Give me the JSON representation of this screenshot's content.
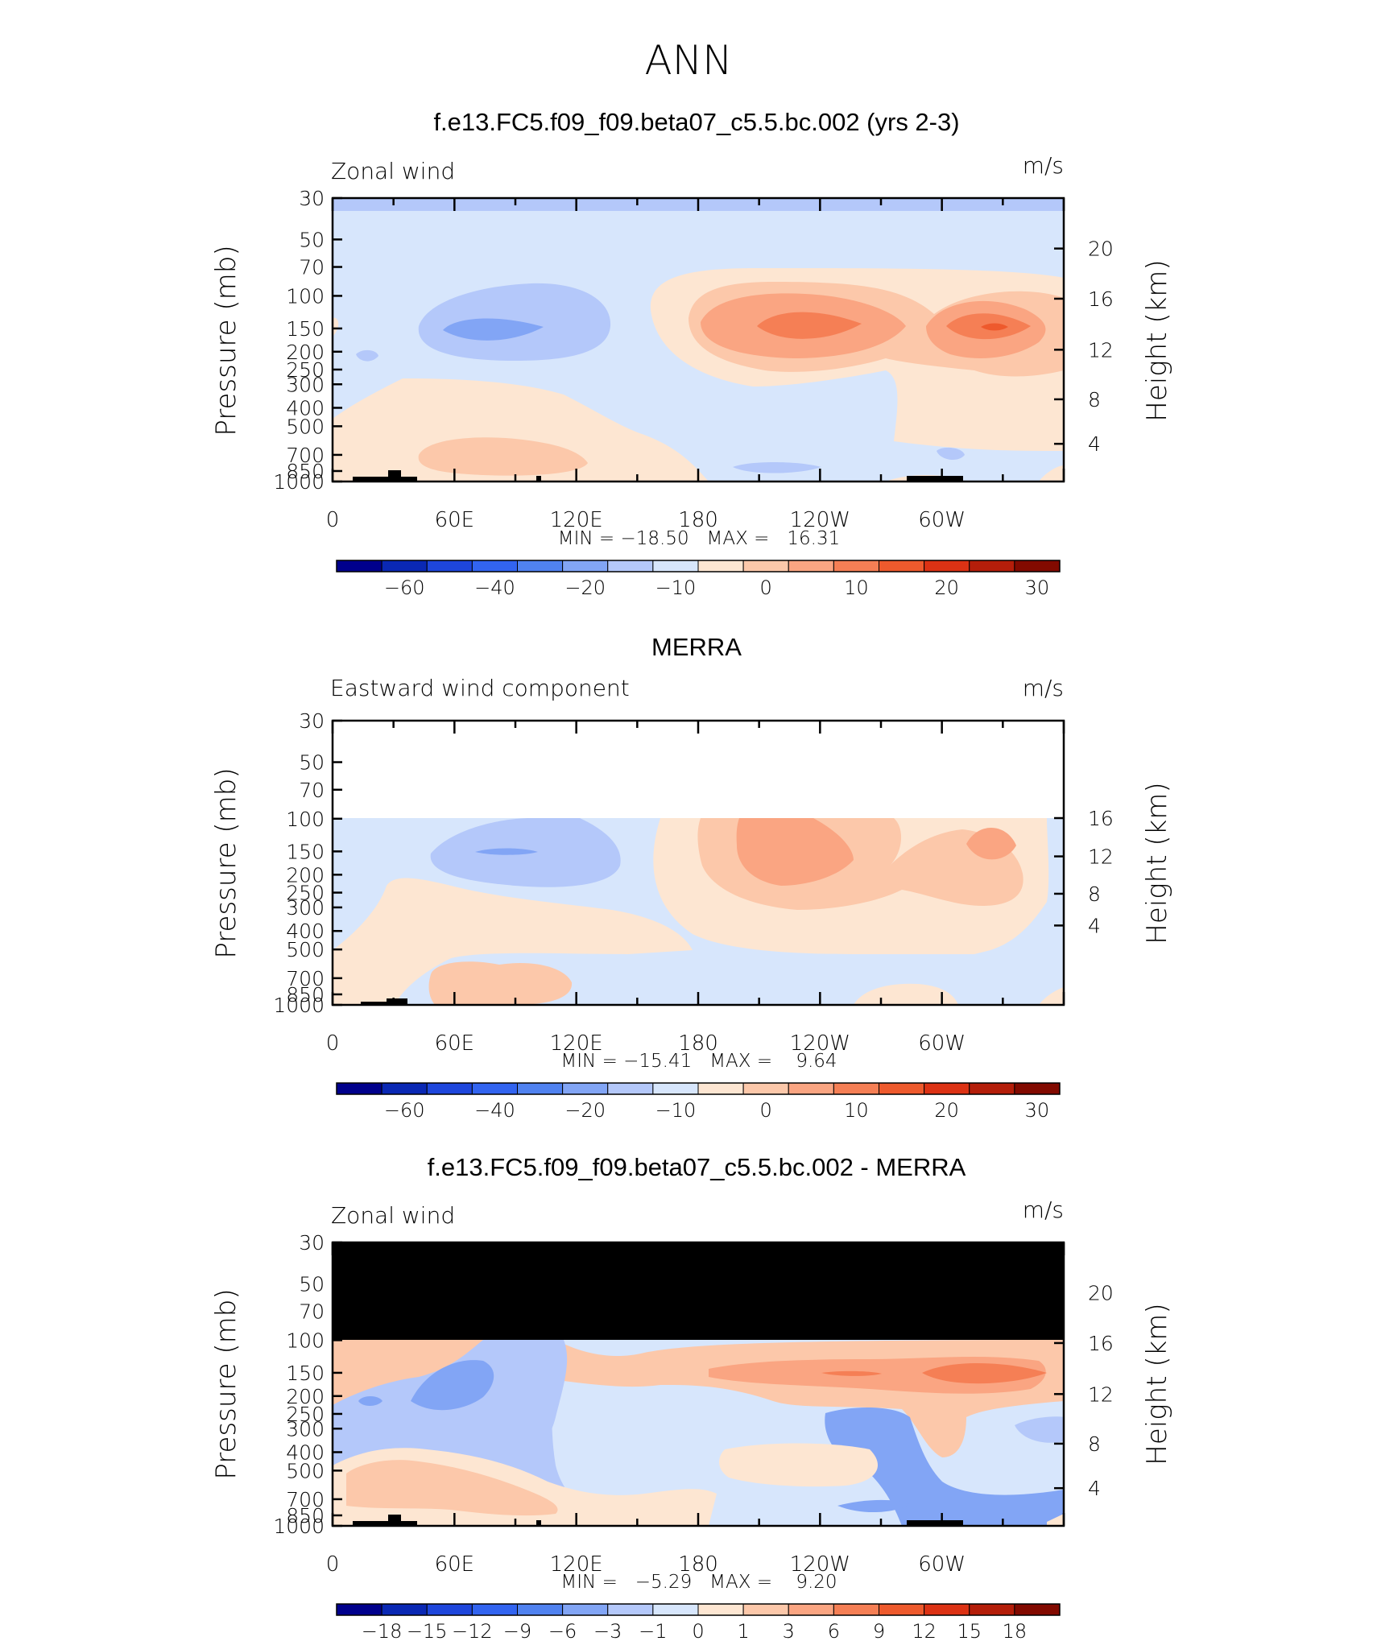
{
  "figure": {
    "title": "ANN"
  },
  "chart_data": [
    {
      "type": "heatmap",
      "title": "f.e13.FC5.f09_f09.beta07_c5.5.bc.002 (yrs 2-3)",
      "variable_label": "Zonal wind",
      "units": "m/s",
      "xlabel": "",
      "ylabel": "Pressure (mb)",
      "y2label": "Height (km)",
      "x_ticks": [
        "0",
        "60E",
        "120E",
        "180",
        "120W",
        "60W"
      ],
      "y_ticks": [
        "30",
        "50",
        "70",
        "100",
        "150",
        "200",
        "250",
        "300",
        "400",
        "500",
        "700",
        "850",
        "1000"
      ],
      "y2_ticks": [
        "20",
        "16",
        "12",
        "8",
        "4"
      ],
      "stats": "MIN = −18.50   MAX =   16.31",
      "colorbar_labels": [
        "−60",
        "−40",
        "−20",
        "−10",
        "0",
        "10",
        "20",
        "30"
      ],
      "min": -18.5,
      "max": 16.31
    },
    {
      "type": "heatmap",
      "title": "MERRA",
      "variable_label": "Eastward wind component",
      "units": "m/s",
      "xlabel": "",
      "ylabel": "Pressure (mb)",
      "y2label": "Height (km)",
      "x_ticks": [
        "0",
        "60E",
        "120E",
        "180",
        "120W",
        "60W"
      ],
      "y_ticks": [
        "30",
        "50",
        "70",
        "100",
        "150",
        "200",
        "250",
        "300",
        "400",
        "500",
        "700",
        "850",
        "1000"
      ],
      "y2_ticks": [
        "16",
        "12",
        "8",
        "4"
      ],
      "stats": "MIN = −15.41   MAX =    9.64",
      "colorbar_labels": [
        "−60",
        "−40",
        "−20",
        "−10",
        "0",
        "10",
        "20",
        "30"
      ],
      "min": -15.41,
      "max": 9.64
    },
    {
      "type": "heatmap",
      "title": "f.e13.FC5.f09_f09.beta07_c5.5.bc.002 - MERRA",
      "variable_label": "Zonal wind",
      "units": "m/s",
      "xlabel": "",
      "ylabel": "Pressure (mb)",
      "y2label": "Height (km)",
      "x_ticks": [
        "0",
        "60E",
        "120E",
        "180",
        "120W",
        "60W"
      ],
      "y_ticks": [
        "30",
        "50",
        "70",
        "100",
        "150",
        "200",
        "250",
        "300",
        "400",
        "500",
        "700",
        "850",
        "1000"
      ],
      "y2_ticks": [
        "20",
        "16",
        "12",
        "8",
        "4"
      ],
      "stats": "MIN =   −5.29   MAX =    9.20",
      "colorbar_labels": [
        "−18",
        "−15",
        "−12",
        "−9",
        "−6",
        "−3",
        "−1",
        "0",
        "1",
        "3",
        "6",
        "9",
        "12",
        "15",
        "18"
      ],
      "min": -5.29,
      "max": 9.2
    }
  ],
  "colors": {
    "palette": [
      "#00008c",
      "#0a28b4",
      "#1e46dc",
      "#3264f0",
      "#5082f0",
      "#82a5f5",
      "#b4c8fa",
      "#d7e6fc",
      "#fde6d2",
      "#fcc8aa",
      "#faa582",
      "#f57f55",
      "#ee5a2d",
      "#dc3214",
      "#b41e0a",
      "#820a00"
    ]
  }
}
